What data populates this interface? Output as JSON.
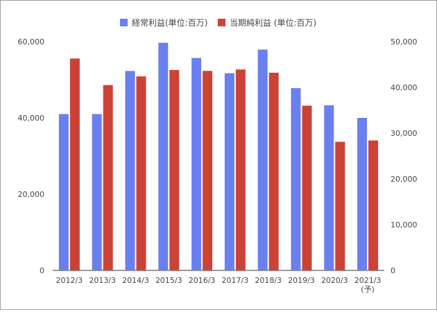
{
  "chart_data": {
    "type": "bar",
    "categories": [
      "2012/3",
      "2013/3",
      "2014/3",
      "2015/3",
      "2016/3",
      "2017/3",
      "2018/3",
      "2019/3",
      "2020/3",
      "2021/3"
    ],
    "category_sublabels": [
      "",
      "",
      "",
      "",
      "",
      "",
      "",
      "",
      "",
      "(予)"
    ],
    "series": [
      {
        "name": "経常利益(単位:百万)",
        "axis": "left",
        "color": "#6a7ff0",
        "values": [
          41000,
          41000,
          52300,
          59700,
          55700,
          51700,
          57900,
          47800,
          43300,
          40000
        ]
      },
      {
        "name": "当期純利益 (単位:百万)",
        "axis": "right",
        "color": "#cc4237",
        "values": [
          46300,
          40500,
          42400,
          43800,
          43600,
          43900,
          43200,
          36000,
          28100,
          28400
        ]
      }
    ],
    "y_left": {
      "min": 0,
      "max": 60000,
      "ticks": [
        0,
        20000,
        40000,
        60000
      ],
      "tick_labels": [
        "0",
        "20,000",
        "40,000",
        "60,000"
      ]
    },
    "y_right": {
      "min": 0,
      "max": 50000,
      "ticks": [
        0,
        10000,
        20000,
        30000,
        40000,
        50000
      ],
      "tick_labels": [
        "0",
        "10,000",
        "20,000",
        "30,000",
        "40,000",
        "50,000"
      ]
    },
    "legend_position": "top",
    "grid": false
  }
}
